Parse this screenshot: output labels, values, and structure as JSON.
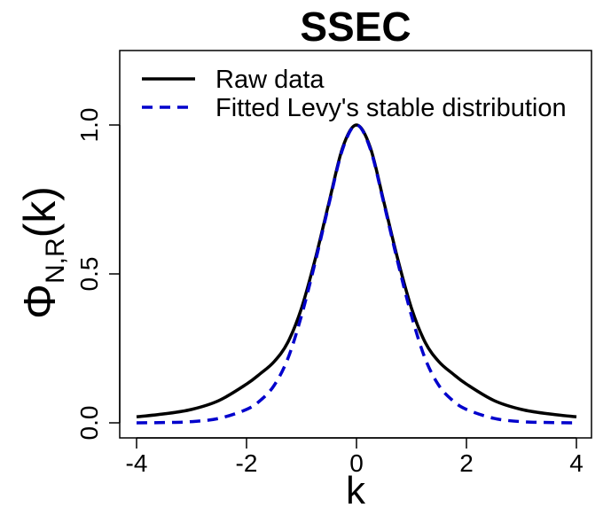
{
  "chart_data": {
    "type": "line",
    "title": "SSEC",
    "xlabel": "k",
    "ylabel": "Φ",
    "ylabel_subscript": "N,R",
    "ylabel_arg": "(k)",
    "xlim": [
      -4.2,
      4.2
    ],
    "ylim": [
      -0.05,
      1.25
    ],
    "xticks": [
      -4,
      -2,
      0,
      2,
      4
    ],
    "xtick_labels": [
      "-4",
      "-2",
      "0",
      "2",
      "4"
    ],
    "yticks": [
      0.0,
      0.5,
      1.0
    ],
    "ytick_labels": [
      "0.0",
      "0.5",
      "1.0"
    ],
    "legend_position": "top-left",
    "series": [
      {
        "name": "Raw data",
        "color": "#000000",
        "style": "solid",
        "x": [
          -4.0,
          -3.5,
          -3.0,
          -2.5,
          -2.0,
          -1.75,
          -1.5,
          -1.25,
          -1.0,
          -0.75,
          -0.5,
          -0.25,
          0.0,
          0.25,
          0.5,
          0.75,
          1.0,
          1.25,
          1.5,
          1.75,
          2.0,
          2.5,
          3.0,
          3.5,
          4.0
        ],
        "y": [
          0.02,
          0.03,
          0.045,
          0.075,
          0.13,
          0.165,
          0.205,
          0.27,
          0.385,
          0.55,
          0.74,
          0.925,
          1.0,
          0.925,
          0.74,
          0.55,
          0.385,
          0.27,
          0.205,
          0.165,
          0.13,
          0.075,
          0.045,
          0.03,
          0.02
        ]
      },
      {
        "name": "Fitted Levy's stable distribution",
        "color": "#0000CC",
        "style": "dashed",
        "x": [
          -4.0,
          -3.5,
          -3.0,
          -2.5,
          -2.0,
          -1.75,
          -1.5,
          -1.25,
          -1.0,
          -0.75,
          -0.5,
          -0.25,
          0.0,
          0.25,
          0.5,
          0.75,
          1.0,
          1.25,
          1.5,
          1.75,
          2.0,
          2.5,
          3.0,
          3.5,
          4.0
        ],
        "y": [
          0.0,
          0.001,
          0.004,
          0.015,
          0.045,
          0.075,
          0.125,
          0.215,
          0.36,
          0.54,
          0.735,
          0.92,
          1.0,
          0.92,
          0.735,
          0.54,
          0.36,
          0.215,
          0.125,
          0.075,
          0.045,
          0.015,
          0.004,
          0.001,
          0.0
        ]
      }
    ]
  }
}
